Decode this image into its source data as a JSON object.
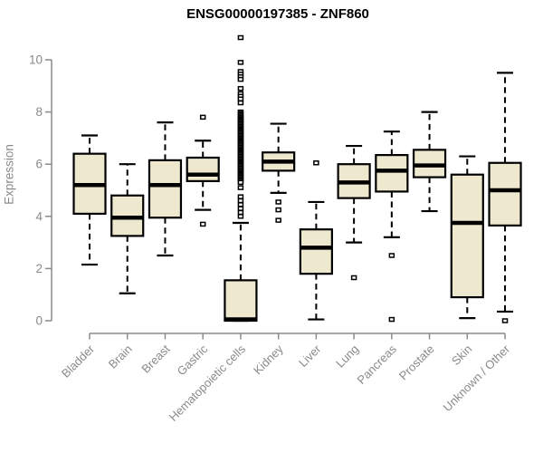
{
  "chart_data": {
    "type": "boxplot",
    "title": "ENSG00000197385 - ZNF860",
    "ylabel": "Expression",
    "xlabel": "",
    "ylim": [
      0,
      10
    ],
    "yticks": [
      0,
      2,
      4,
      6,
      8,
      10
    ],
    "grid": false,
    "legend": "none",
    "colors": {
      "box_fill": "#EDE8CE",
      "box_stroke": "#000000",
      "median": "#000000",
      "axis": "#8A8A8A",
      "tick_label": "#8A8A8A",
      "title_text": "#000000",
      "outlier_fill": "#FFFFFF",
      "background": "#FFFFFF"
    },
    "categories": [
      "Bladder",
      "Brain",
      "Breast",
      "Gastric",
      "Hematopoietic cells",
      "Kidney",
      "Liver",
      "Lung",
      "Pancreas",
      "Prostate",
      "Skin",
      "Unknown / Other"
    ],
    "boxes": [
      {
        "label": "Bladder",
        "whisker_low": 2.15,
        "q1": 4.1,
        "median": 5.2,
        "q3": 6.4,
        "whisker_high": 7.1,
        "outliers": []
      },
      {
        "label": "Brain",
        "whisker_low": 1.05,
        "q1": 3.25,
        "median": 3.95,
        "q3": 4.8,
        "whisker_high": 6.0,
        "outliers": []
      },
      {
        "label": "Breast",
        "whisker_low": 2.5,
        "q1": 3.95,
        "median": 5.2,
        "q3": 6.15,
        "whisker_high": 7.6,
        "outliers": []
      },
      {
        "label": "Gastric",
        "whisker_low": 4.25,
        "q1": 5.35,
        "median": 5.6,
        "q3": 6.25,
        "whisker_high": 6.9,
        "outliers": [
          7.8,
          3.7
        ]
      },
      {
        "label": "Hematopoietic cells",
        "whisker_low": 0,
        "q1": 0,
        "median": 0.05,
        "q3": 1.55,
        "whisker_high": 3.75,
        "outliers": [
          10.85,
          9.9,
          9.55,
          9.45,
          9.35,
          9.25,
          8.9,
          8.7,
          8.6,
          8.5,
          8.35,
          8.0,
          7.95,
          7.9,
          7.85,
          7.8,
          7.75,
          7.7,
          7.65,
          7.6,
          7.55,
          7.5,
          7.45,
          7.4,
          7.35,
          7.3,
          7.25,
          7.2,
          7.15,
          7.1,
          7.05,
          7.0,
          6.95,
          6.9,
          6.85,
          6.8,
          6.75,
          6.7,
          6.65,
          6.6,
          6.55,
          6.5,
          6.45,
          6.4,
          6.35,
          6.3,
          6.25,
          6.2,
          6.15,
          6.1,
          6.05,
          6.0,
          5.95,
          5.9,
          5.85,
          5.8,
          5.75,
          5.7,
          5.65,
          5.6,
          5.55,
          5.5,
          5.45,
          5.4,
          5.35,
          5.3,
          5.1,
          4.75,
          4.6,
          4.45,
          4.3,
          4.15,
          4.0
        ]
      },
      {
        "label": "Kidney",
        "whisker_low": 4.9,
        "q1": 5.75,
        "median": 6.1,
        "q3": 6.45,
        "whisker_high": 7.55,
        "outliers": [
          4.55,
          4.25,
          3.85
        ]
      },
      {
        "label": "Liver",
        "whisker_low": 0.05,
        "q1": 1.8,
        "median": 2.8,
        "q3": 3.5,
        "whisker_high": 4.55,
        "outliers": [
          6.05
        ]
      },
      {
        "label": "Lung",
        "whisker_low": 3.0,
        "q1": 4.7,
        "median": 5.3,
        "q3": 6.0,
        "whisker_high": 6.7,
        "outliers": [
          1.65
        ]
      },
      {
        "label": "Pancreas",
        "whisker_low": 3.2,
        "q1": 4.95,
        "median": 5.75,
        "q3": 6.35,
        "whisker_high": 7.25,
        "outliers": [
          2.5,
          0.05
        ]
      },
      {
        "label": "Prostate",
        "whisker_low": 4.2,
        "q1": 5.5,
        "median": 5.95,
        "q3": 6.55,
        "whisker_high": 8.0,
        "outliers": []
      },
      {
        "label": "Skin",
        "whisker_low": 0.1,
        "q1": 0.9,
        "median": 3.75,
        "q3": 5.6,
        "whisker_high": 6.3,
        "outliers": []
      },
      {
        "label": "Unknown / Other",
        "whisker_low": 0.35,
        "q1": 3.65,
        "median": 5.0,
        "q3": 6.05,
        "whisker_high": 9.5,
        "outliers": [
          0.0
        ]
      }
    ]
  }
}
